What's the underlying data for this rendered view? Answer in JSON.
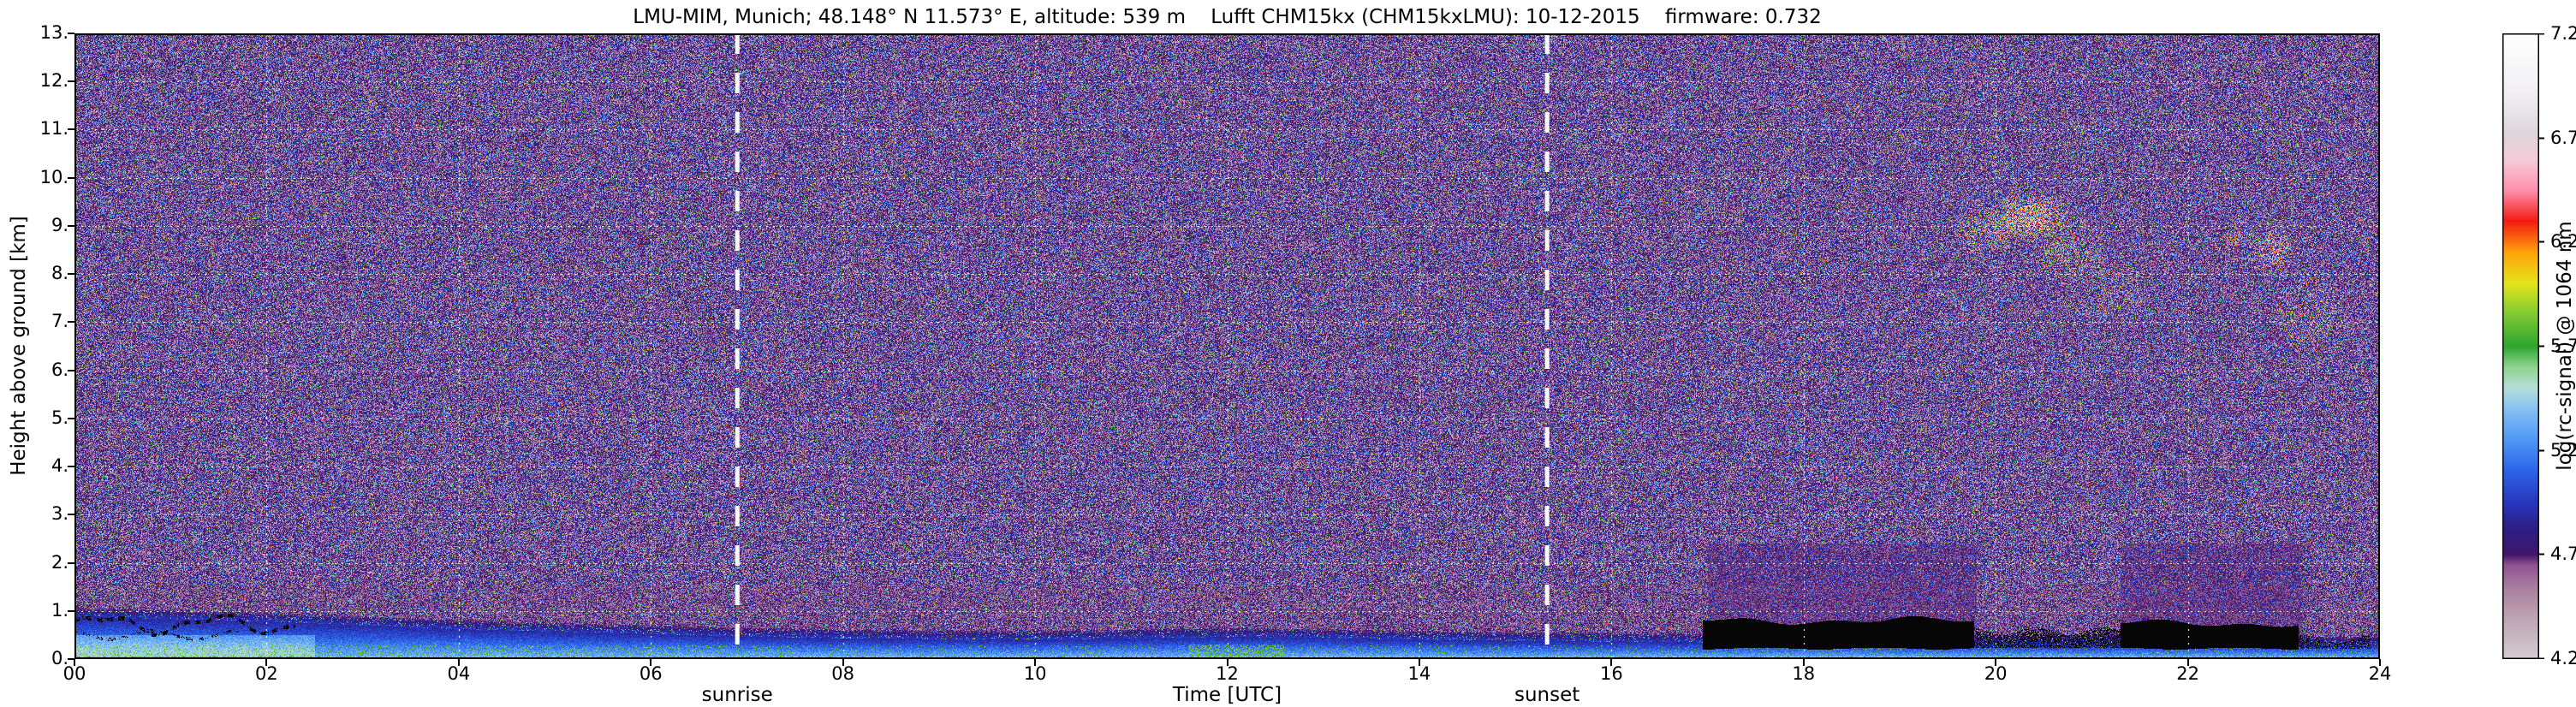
{
  "metadata": {
    "station": "LMU-MIM, Munich",
    "coordinates": "48.148° N 11.573° E",
    "altitude": "539 m",
    "instrument": "Lufft CHM15kx (CHM15kxLMU)",
    "date": "10-12-2015",
    "firmware": "0.732"
  },
  "chart_data": {
    "type": "heatmap",
    "title": "LMU-MIM, Munich; 48.148° N 11.573° E, altitude: 539 m    Lufft CHM15kx (CHM15kxLMU): 10-12-2015    firmware: 0.732",
    "xlabel": "Time [UTC]",
    "ylabel": "Height above ground [km]",
    "xlim": [
      0,
      24
    ],
    "ylim": [
      0,
      13
    ],
    "x_ticks": [
      "00",
      "02",
      "04",
      "06",
      "08",
      "10",
      "12",
      "14",
      "16",
      "18",
      "20",
      "22",
      "24"
    ],
    "x_tick_values": [
      0,
      2,
      4,
      6,
      8,
      10,
      12,
      14,
      16,
      18,
      20,
      22,
      24
    ],
    "y_ticks": [
      "0.",
      "1.",
      "2.",
      "3.",
      "4.",
      "5.",
      "6.",
      "7.",
      "8.",
      "9.",
      "10.",
      "11.",
      "12.",
      "13."
    ],
    "y_tick_values": [
      0,
      1,
      2,
      3,
      4,
      5,
      6,
      7,
      8,
      9,
      10,
      11,
      12,
      13
    ],
    "grid": true,
    "grid_color": "#ffffff",
    "annotations": [
      {
        "label": "sunrise",
        "x": 6.9
      },
      {
        "label": "sunset",
        "x": 15.33
      }
    ],
    "colorbar": {
      "label": "log(rc-signal) @ 1064 nm",
      "ticks": [
        "4.2",
        "4.7",
        "5.2",
        "5.7",
        "6.2",
        "6.7",
        "7.2"
      ],
      "tick_values": [
        4.2,
        4.7,
        5.2,
        5.7,
        6.2,
        6.7,
        7.2
      ],
      "range": [
        4.2,
        7.2
      ],
      "colormap": [
        [
          4.2,
          "#d4ccd1"
        ],
        [
          4.4,
          "#bda3b2"
        ],
        [
          4.55,
          "#a87b9e"
        ],
        [
          4.65,
          "#8f5191"
        ],
        [
          4.7,
          "#41156a"
        ],
        [
          4.82,
          "#2d1d85"
        ],
        [
          4.95,
          "#2736bd"
        ],
        [
          5.1,
          "#2b63e8"
        ],
        [
          5.25,
          "#4e97f5"
        ],
        [
          5.4,
          "#87c1f2"
        ],
        [
          5.5,
          "#b5ddd8"
        ],
        [
          5.6,
          "#8ed48e"
        ],
        [
          5.7,
          "#2ea52e"
        ],
        [
          5.85,
          "#7dc832"
        ],
        [
          6.0,
          "#e4e41c"
        ],
        [
          6.15,
          "#ffa20a"
        ],
        [
          6.3,
          "#f31b10"
        ],
        [
          6.45,
          "#ff8fae"
        ],
        [
          6.6,
          "#f6ccd9"
        ],
        [
          6.72,
          "#dcd5da"
        ],
        [
          6.9,
          "#efedf0"
        ],
        [
          7.2,
          "#ffffff"
        ]
      ]
    },
    "features": {
      "background_signal": 4.7,
      "magenta_band_top_km": 1.55,
      "boundary_layer": {
        "description": "near-surface aerosol layer (blue/cyan), decaying after sunrise",
        "hours": [
          0,
          2,
          4,
          6,
          7,
          8,
          10,
          12,
          13,
          14,
          16,
          18,
          20,
          22,
          24
        ],
        "top_km": [
          0.88,
          0.78,
          0.62,
          0.52,
          0.47,
          0.43,
          0.4,
          0.46,
          0.44,
          0.4,
          0.36,
          0.33,
          0.31,
          0.3,
          0.28
        ]
      },
      "cloud_blobs": [
        {
          "t": 19.9,
          "h": 8.9,
          "rt": 0.35,
          "rh": 0.5,
          "density": 0.3,
          "hot": false
        },
        {
          "t": 20.35,
          "h": 9.2,
          "rt": 0.45,
          "rh": 0.55,
          "density": 0.6,
          "hot": true
        },
        {
          "t": 20.8,
          "h": 8.5,
          "rt": 0.4,
          "rh": 0.7,
          "density": 0.25,
          "hot": false
        },
        {
          "t": 21.2,
          "h": 7.6,
          "rt": 0.45,
          "rh": 0.7,
          "density": 0.14,
          "hot": false
        },
        {
          "t": 22.5,
          "h": 8.75,
          "rt": 0.18,
          "rh": 0.25,
          "density": 0.35,
          "hot": false
        },
        {
          "t": 22.9,
          "h": 8.5,
          "rt": 0.25,
          "rh": 0.5,
          "density": 0.4,
          "hot": true
        },
        {
          "t": 23.3,
          "h": 7.2,
          "rt": 0.4,
          "rh": 0.9,
          "density": 0.18,
          "hot": false
        }
      ],
      "black_regions": [
        {
          "type": "dots",
          "t0": 0.0,
          "t1": 2.3,
          "h": 0.72,
          "amp": 0.16
        },
        {
          "type": "solid",
          "t0": 16.95,
          "t1": 19.78,
          "h0": 0.22,
          "h1": 0.8
        },
        {
          "type": "speckle",
          "t0": 19.78,
          "t1": 21.3,
          "h0": 0.24,
          "h1": 0.58,
          "p": 0.5
        },
        {
          "type": "solid",
          "t0": 21.3,
          "t1": 23.15,
          "h0": 0.22,
          "h1": 0.74
        },
        {
          "type": "speckle",
          "t0": 23.15,
          "t1": 23.9,
          "h0": 0.22,
          "h1": 0.42,
          "p": 0.35
        }
      ],
      "shadow_regions": [
        {
          "t0": 17.0,
          "t1": 19.8,
          "h_max": 2.4
        },
        {
          "t0": 21.3,
          "t1": 23.2,
          "h_max": 2.4
        }
      ]
    }
  }
}
